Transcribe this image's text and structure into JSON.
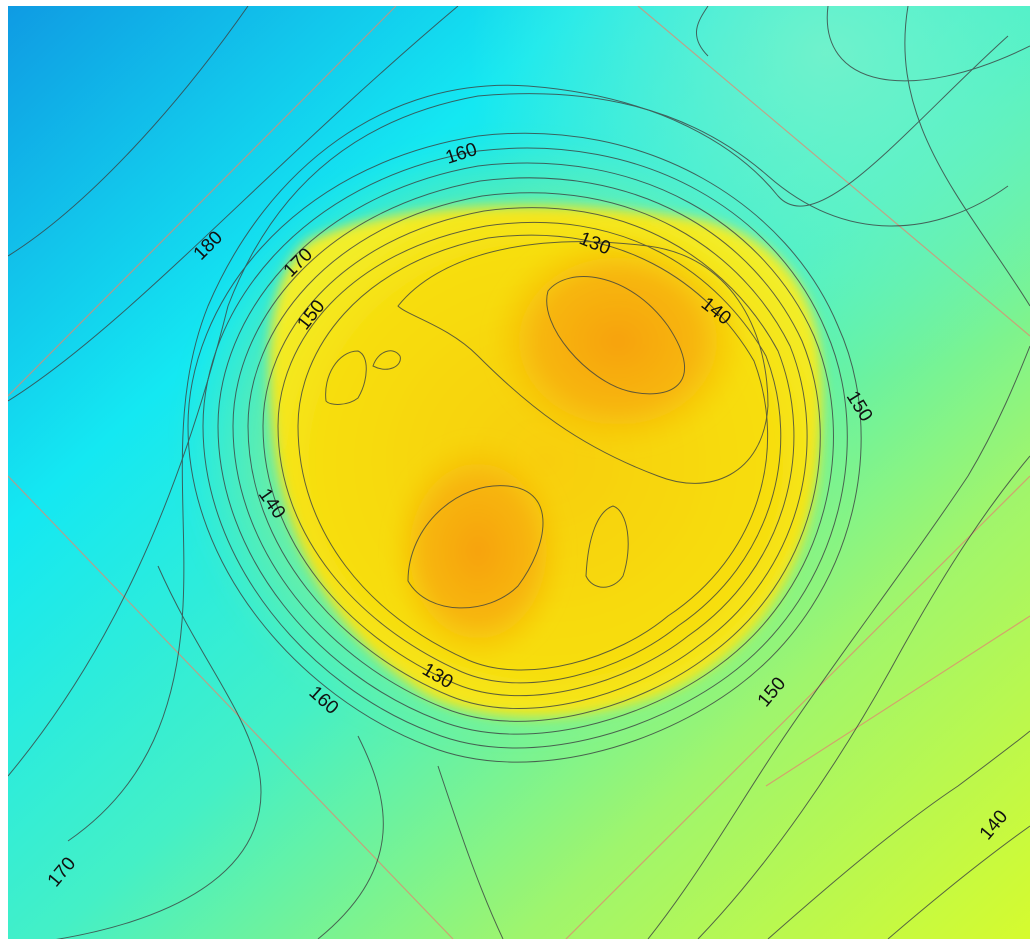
{
  "map": {
    "colors": {
      "deep_blue": "#0f9be3",
      "cyan": "#14e8f2",
      "aqua_green": "#44f0c6",
      "mint": "#6af3bc",
      "light_green": "#9ff56d",
      "yellow_green": "#d6fb2e",
      "yellow": "#f7e60e",
      "orange": "#f7a20c",
      "contour_line": "#3b4040",
      "grid_line": "#e08870"
    },
    "contour_labels": [
      {
        "text": "180",
        "value": 180
      },
      {
        "text": "170",
        "value": 170
      },
      {
        "text": "160",
        "value": 160
      },
      {
        "text": "150",
        "value": 150
      },
      {
        "text": "130",
        "value": 130
      },
      {
        "text": "140",
        "value": 140
      },
      {
        "text": "150",
        "value": 150
      },
      {
        "text": "140",
        "value": 140
      },
      {
        "text": "130",
        "value": 130
      },
      {
        "text": "160",
        "value": 160
      },
      {
        "text": "150",
        "value": 150
      },
      {
        "text": "170",
        "value": 170
      },
      {
        "text": "140",
        "value": 140
      }
    ]
  }
}
